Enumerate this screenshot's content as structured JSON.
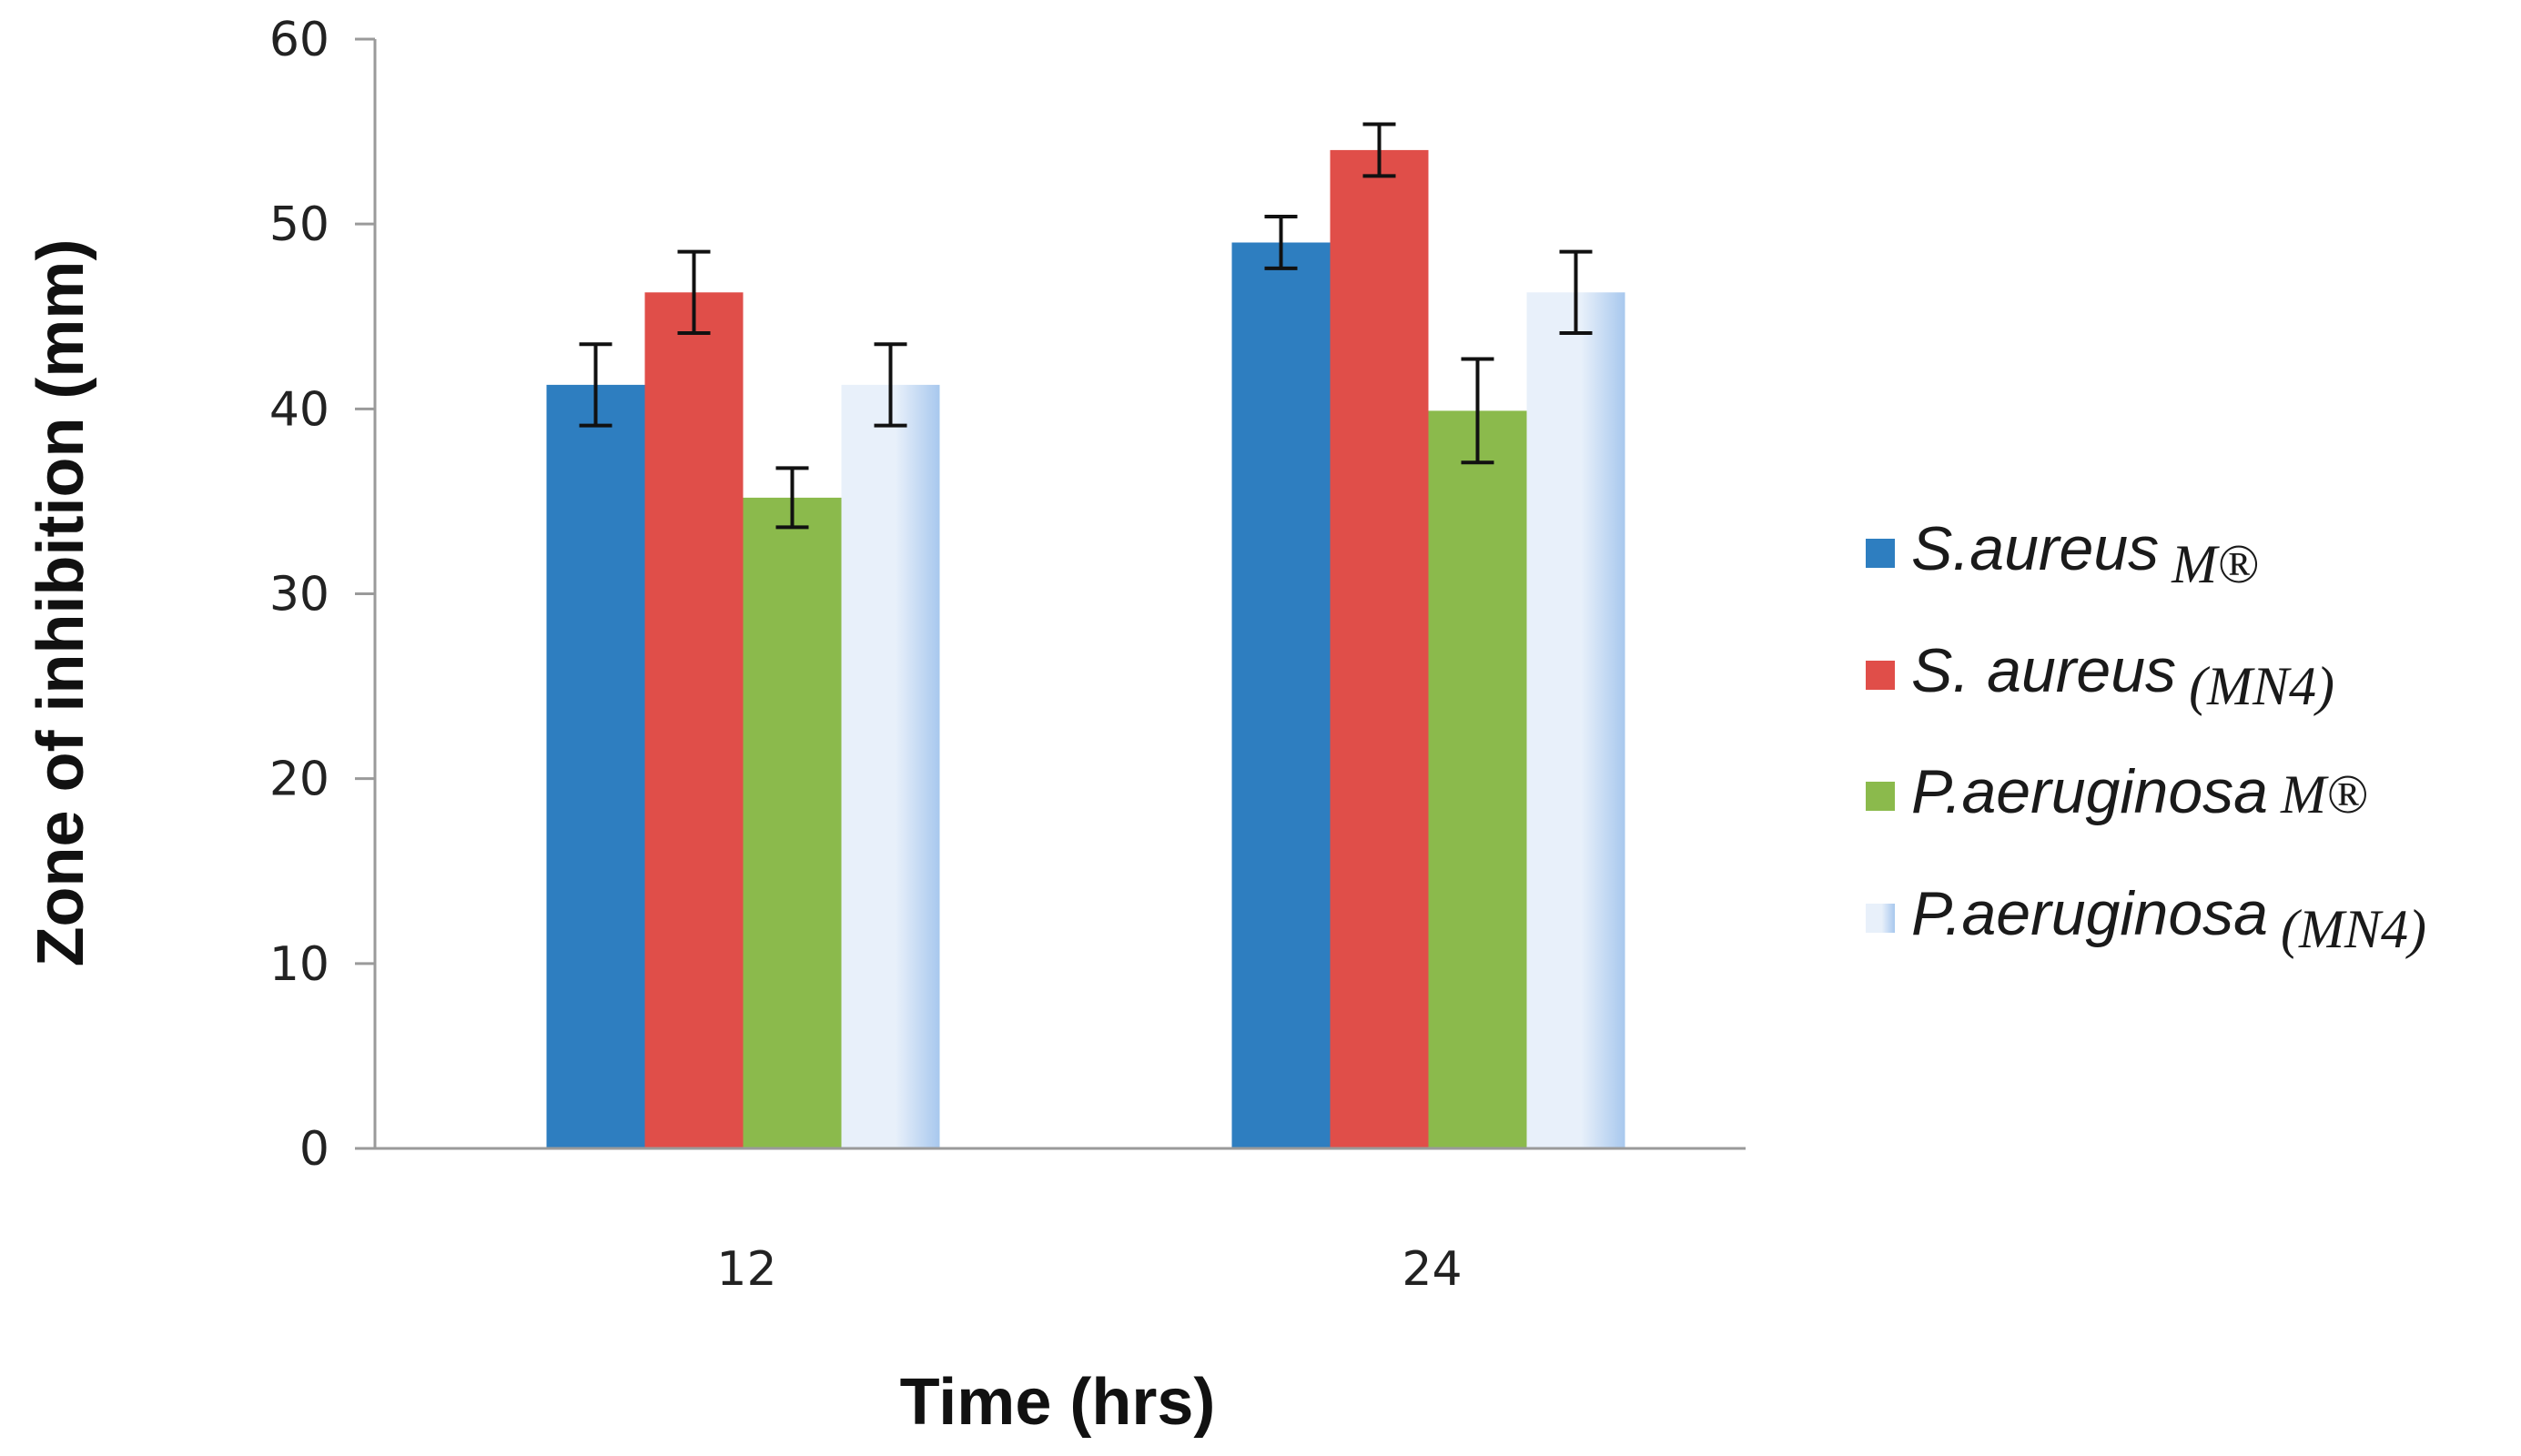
{
  "chart_data": {
    "type": "bar",
    "title": "",
    "xlabel": "Time (hrs)",
    "ylabel": "Zone of inhibition (mm)",
    "ylim": [
      0,
      60
    ],
    "yticks": [
      0,
      10,
      20,
      30,
      40,
      50,
      60
    ],
    "grid": false,
    "legend_position": "right",
    "categories": [
      "12",
      "24"
    ],
    "series": [
      {
        "name": "S.aureus",
        "suffix": "M®",
        "values": [
          41.3,
          49.0
        ],
        "errors": [
          2.2,
          1.4
        ],
        "color": "#2E7EC0",
        "color_light": "#2E7EC0"
      },
      {
        "name": "S. aureus",
        "suffix": "(MN4)",
        "values": [
          46.3,
          54.0
        ],
        "errors": [
          2.2,
          1.4
        ],
        "color": "#E04E49",
        "color_light": "#E04E49"
      },
      {
        "name": "P.aeruginosa",
        "suffix": "M®",
        "values": [
          35.2,
          39.9
        ],
        "errors": [
          1.6,
          2.8
        ],
        "color": "#8BBA4C",
        "color_light": "#8BBA4C"
      },
      {
        "name": "P.aeruginosa",
        "suffix": "(MN4)",
        "values": [
          41.3,
          46.3
        ],
        "errors": [
          2.2,
          2.2
        ],
        "color": "#A8C8EE",
        "color_light": "#E8F0FA"
      }
    ]
  }
}
